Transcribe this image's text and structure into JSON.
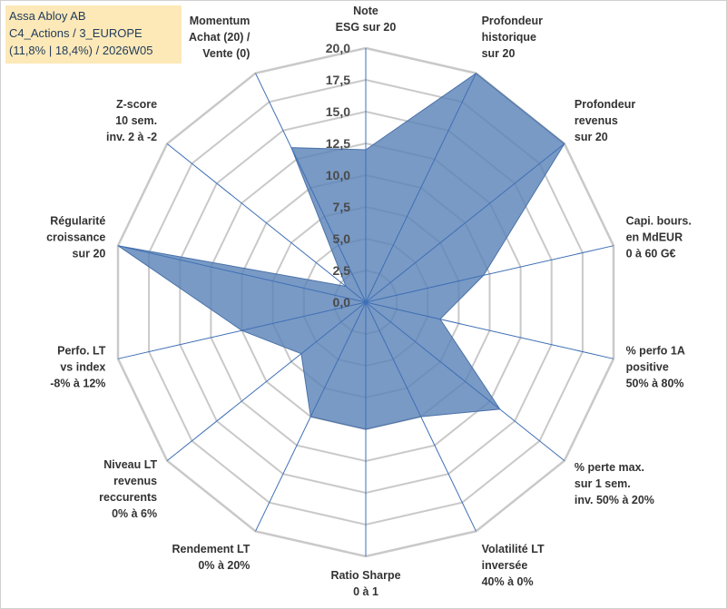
{
  "info": {
    "line1": "Assa Abloy AB",
    "line2": "C4_Actions / 3_EUROPE",
    "line3": "(11,8% | 18,4%) / 2026W05"
  },
  "chart_data": {
    "type": "radar",
    "title": "",
    "rmin": 0,
    "rmax": 20,
    "tick_step": 2.5,
    "tick_labels": [
      "0,0",
      "2,5",
      "5,0",
      "7,5",
      "10,0",
      "12,5",
      "15,0",
      "17,5",
      "20,0"
    ],
    "axes": [
      [
        "Note",
        "ESG sur 20"
      ],
      [
        "Profondeur",
        "historique",
        "sur 20"
      ],
      [
        "Profondeur",
        "revenus",
        "sur 20"
      ],
      [
        "Capi. bours.",
        "en MdEUR",
        "0 à 60 G€"
      ],
      [
        "% perfo 1A",
        "positive",
        "50% à 80%"
      ],
      [
        "% perte max.",
        "sur 1 sem.",
        "inv. 50% à 20%"
      ],
      [
        "Volatilité LT",
        "inversée",
        "40% à 0%"
      ],
      [
        "Ratio Sharpe",
        "0 à 1"
      ],
      [
        "Rendement LT",
        "0% à 20%"
      ],
      [
        "Niveau LT",
        "revenus",
        "reccurents",
        "0% à 6%"
      ],
      [
        "Perfo. LT",
        "vs index",
        "-8% à 12%"
      ],
      [
        "Régularité",
        "croissance",
        "sur 20"
      ],
      [
        "Z-score",
        "10 sem.",
        "inv. 2 à -2"
      ],
      [
        "Momentum",
        "Achat (20) /",
        "Vente (0)"
      ]
    ],
    "series": [
      {
        "name": "Assa Abloy AB",
        "color": "#5b84b8",
        "values": [
          12.0,
          20.0,
          20.0,
          9.5,
          6.0,
          13.5,
          10.0,
          10.0,
          10.0,
          6.5,
          10.0,
          20.0,
          2.0,
          13.5
        ]
      }
    ]
  }
}
